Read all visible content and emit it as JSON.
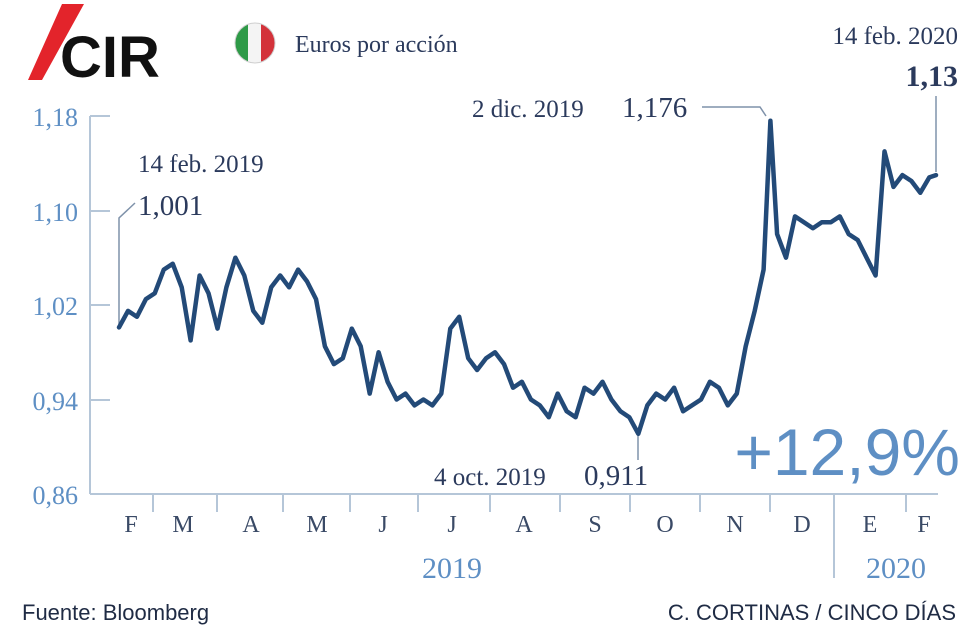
{
  "header": {
    "logo_text": "CIR",
    "country_flag": "italy-flag",
    "unit_label": "Euros por acción",
    "end_date": "14 feb. 2020",
    "end_value": "1,13"
  },
  "annotations": {
    "start_date": "14 feb. 2019",
    "start_value": "1,001",
    "max_date": "2 dic. 2019",
    "max_value": "1,176",
    "min_date": "4 oct. 2019",
    "min_value": "0,911",
    "change": "+12,9%"
  },
  "footer": {
    "source": "Fuente: Bloomberg",
    "credit": "C. CORTINAS / CINCO DÍAS"
  },
  "colors": {
    "line": "#234a78",
    "axis": "#b5c6d8",
    "tick_label": "#5e8fc4",
    "change": "#5e8fc4",
    "logo_red": "#e3242b",
    "text": "#2b3a5c"
  },
  "chart_data": {
    "type": "line",
    "y_ticks": [
      "1,18",
      "1,10",
      "1,02",
      "0,94",
      "0,86"
    ],
    "ylim": [
      0.86,
      1.18
    ],
    "x_months": [
      "F",
      "M",
      "A",
      "M",
      "J",
      "J",
      "A",
      "S",
      "O",
      "N",
      "D",
      "E",
      "F"
    ],
    "x_years": [
      "2019",
      "2020"
    ],
    "xlim": [
      "2019-02-14",
      "2020-02-14"
    ],
    "series": [
      {
        "x": [
          "2019-02-14",
          "2019-02-18",
          "2019-02-22",
          "2019-02-26",
          "2019-03-02",
          "2019-03-06",
          "2019-03-10",
          "2019-03-14",
          "2019-03-18",
          "2019-03-22",
          "2019-03-26",
          "2019-03-30",
          "2019-04-03",
          "2019-04-07",
          "2019-04-11",
          "2019-04-15",
          "2019-04-19",
          "2019-04-23",
          "2019-04-27",
          "2019-05-01",
          "2019-05-05",
          "2019-05-09",
          "2019-05-13",
          "2019-05-17",
          "2019-05-21",
          "2019-05-25",
          "2019-05-29",
          "2019-06-02",
          "2019-06-06",
          "2019-06-10",
          "2019-06-14",
          "2019-06-18",
          "2019-06-22",
          "2019-06-26",
          "2019-06-30",
          "2019-07-04",
          "2019-07-08",
          "2019-07-12",
          "2019-07-16",
          "2019-07-20",
          "2019-07-24",
          "2019-07-28",
          "2019-08-01",
          "2019-08-05",
          "2019-08-09",
          "2019-08-13",
          "2019-08-17",
          "2019-08-21",
          "2019-08-25",
          "2019-08-29",
          "2019-09-02",
          "2019-09-06",
          "2019-09-10",
          "2019-09-14",
          "2019-09-18",
          "2019-09-22",
          "2019-09-26",
          "2019-09-30",
          "2019-10-04",
          "2019-10-08",
          "2019-10-12",
          "2019-10-16",
          "2019-10-20",
          "2019-10-24",
          "2019-10-28",
          "2019-11-01",
          "2019-11-05",
          "2019-11-09",
          "2019-11-13",
          "2019-11-17",
          "2019-11-21",
          "2019-11-25",
          "2019-11-29",
          "2019-12-02",
          "2019-12-05",
          "2019-12-09",
          "2019-12-13",
          "2019-12-17",
          "2019-12-21",
          "2019-12-25",
          "2019-12-29",
          "2020-01-02",
          "2020-01-06",
          "2020-01-10",
          "2020-01-14",
          "2020-01-18",
          "2020-01-22",
          "2020-01-26",
          "2020-01-30",
          "2020-02-03",
          "2020-02-07",
          "2020-02-11",
          "2020-02-14"
        ],
        "values": [
          1.001,
          1.015,
          1.01,
          1.025,
          1.03,
          1.05,
          1.055,
          1.035,
          0.99,
          1.045,
          1.03,
          1.0,
          1.035,
          1.06,
          1.045,
          1.015,
          1.005,
          1.035,
          1.045,
          1.035,
          1.05,
          1.04,
          1.025,
          0.985,
          0.97,
          0.975,
          1.0,
          0.985,
          0.945,
          0.98,
          0.955,
          0.94,
          0.945,
          0.935,
          0.94,
          0.935,
          0.945,
          1.0,
          1.01,
          0.975,
          0.965,
          0.975,
          0.98,
          0.97,
          0.95,
          0.955,
          0.94,
          0.935,
          0.925,
          0.945,
          0.93,
          0.925,
          0.95,
          0.945,
          0.955,
          0.94,
          0.93,
          0.925,
          0.911,
          0.935,
          0.945,
          0.94,
          0.95,
          0.93,
          0.935,
          0.94,
          0.955,
          0.95,
          0.935,
          0.945,
          0.985,
          1.015,
          1.05,
          1.176,
          1.08,
          1.06,
          1.095,
          1.09,
          1.085,
          1.09,
          1.09,
          1.095,
          1.08,
          1.075,
          1.06,
          1.045,
          1.15,
          1.12,
          1.13,
          1.125,
          1.115,
          1.128,
          1.13
        ]
      }
    ],
    "max_point": {
      "x": "2019-12-02",
      "y": 1.176
    },
    "min_point": {
      "x": "2019-10-04",
      "y": 0.911
    },
    "start_point": {
      "x": "2019-02-14",
      "y": 1.001
    },
    "end_point": {
      "x": "2020-02-14",
      "y": 1.13
    },
    "grid": false
  }
}
